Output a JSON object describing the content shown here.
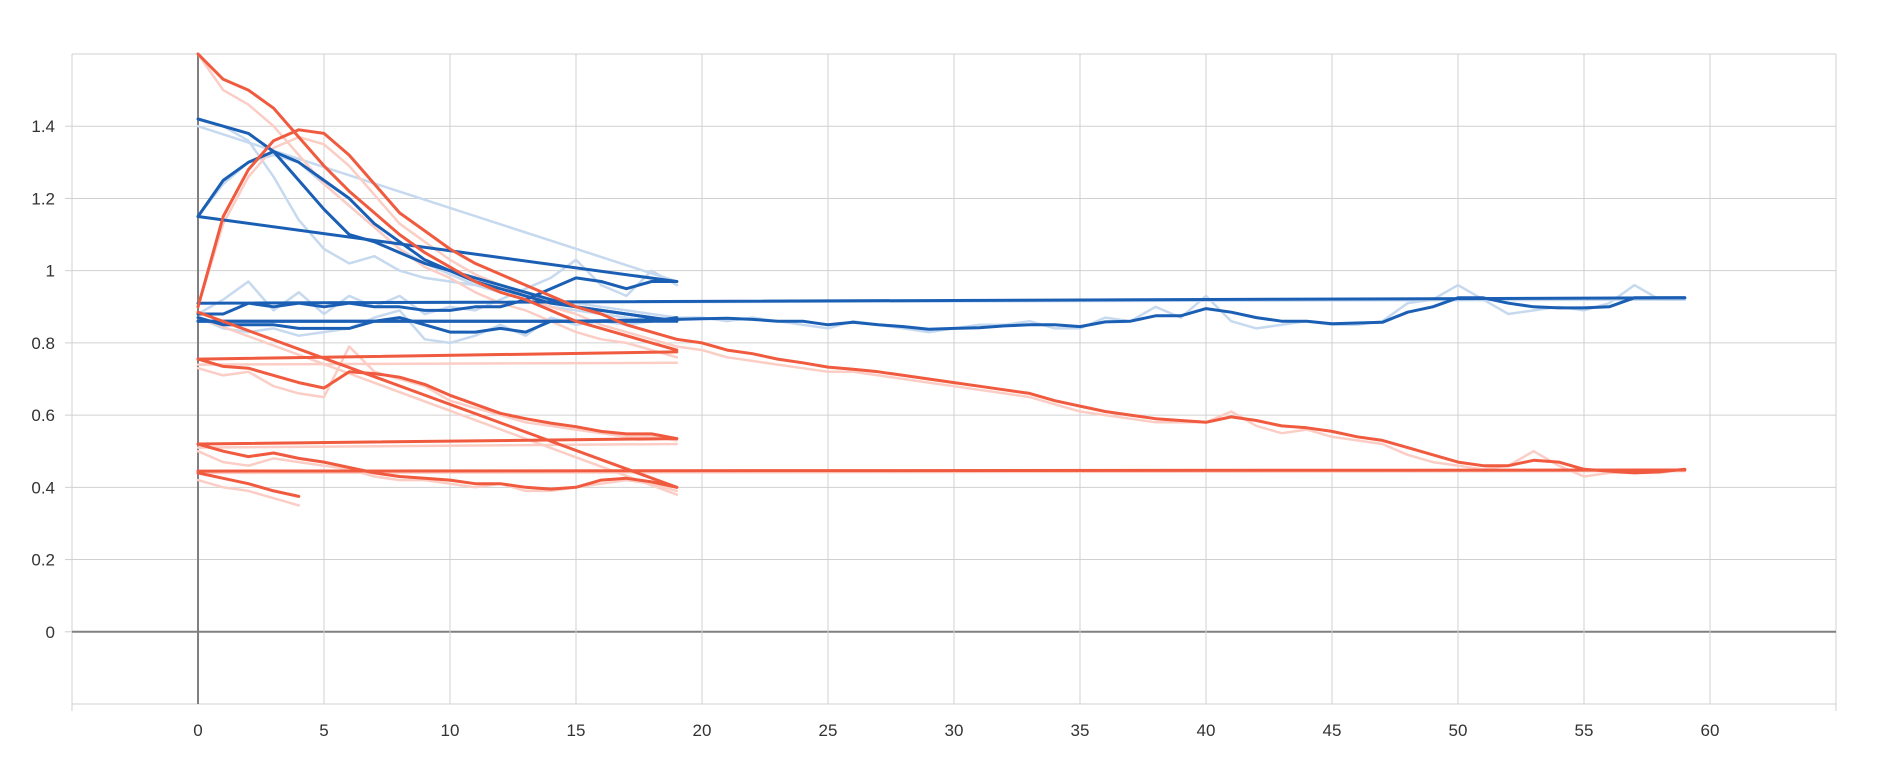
{
  "chart_data": {
    "type": "line",
    "title": "",
    "xlabel": "",
    "ylabel": "",
    "xlim": [
      -5,
      65
    ],
    "ylim": [
      -0.2,
      1.6
    ],
    "x_ticks": [
      0,
      5,
      10,
      15,
      20,
      25,
      30,
      35,
      40,
      45,
      50,
      55,
      60
    ],
    "y_ticks": [
      0,
      0.2,
      0.4,
      0.6,
      0.8,
      1,
      1.2,
      1.4
    ],
    "x_tick_labels": [
      "0",
      "5",
      "10",
      "15",
      "20",
      "25",
      "30",
      "35",
      "40",
      "45",
      "50",
      "55",
      "60"
    ],
    "y_tick_labels": [
      "0",
      "0.2",
      "0.4",
      "0.6",
      "0.8",
      "1",
      "1.2",
      "1.4"
    ],
    "grid": true,
    "legend": "none",
    "colors": {
      "blue": "#1a5fb4",
      "blue_light": "#c6d9ef",
      "red": "#f05a3f",
      "red_light": "#fbcdc4",
      "grid": "#d0d0d0",
      "axis": "#808080"
    },
    "series": [
      {
        "color": "blue",
        "x": [
          0,
          1,
          2,
          3,
          4,
          5,
          6,
          7,
          8,
          9,
          10,
          11,
          12,
          13,
          14,
          15,
          16,
          17,
          18,
          19
        ],
        "y": [
          1.42,
          1.4,
          1.38,
          1.33,
          1.25,
          1.17,
          1.1,
          1.08,
          1.05,
          1.02,
          1.0,
          0.98,
          0.96,
          0.94,
          0.92,
          0.9,
          0.89,
          0.88,
          0.87,
          0.86
        ],
        "ghost": [
          1.42,
          1.4,
          1.36,
          1.26,
          1.14,
          1.06,
          1.02,
          1.04,
          1.0,
          0.98,
          0.97,
          0.96,
          0.95,
          0.93,
          0.92,
          0.91,
          0.9,
          0.89,
          0.88,
          0.87
        ]
      },
      {
        "color": "blue",
        "x": [
          0,
          1,
          2,
          3,
          4,
          5,
          6,
          7,
          8,
          9,
          10,
          11,
          12,
          13,
          14,
          15,
          16,
          17,
          18,
          19
        ],
        "y": [
          1.15,
          1.25,
          1.3,
          1.33,
          1.3,
          1.25,
          1.2,
          1.13,
          1.08,
          1.03,
          1.0,
          0.97,
          0.95,
          0.93,
          0.91,
          0.9,
          0.89,
          0.88,
          0.87,
          0.86
        ],
        "ghost": [
          1.15,
          1.24,
          1.3,
          1.32,
          1.3,
          1.24,
          1.18,
          1.12,
          1.06,
          1.02,
          0.99,
          0.96,
          0.94,
          0.92,
          0.9,
          0.89,
          0.88,
          0.87,
          0.86,
          0.86
        ]
      },
      {
        "color": "blue",
        "x": [
          0,
          19
        ],
        "y": [
          1.15,
          0.97
        ],
        "ghost": [
          1.4,
          0.97
        ]
      },
      {
        "color": "blue",
        "x": [
          0,
          1,
          2,
          3,
          4,
          5,
          6,
          7,
          8,
          9,
          10,
          11,
          12,
          13,
          14,
          15,
          16,
          17,
          18,
          19
        ],
        "y": [
          0.88,
          0.88,
          0.91,
          0.9,
          0.91,
          0.9,
          0.91,
          0.9,
          0.9,
          0.89,
          0.89,
          0.9,
          0.9,
          0.92,
          0.95,
          0.98,
          0.97,
          0.95,
          0.97,
          0.97
        ],
        "ghost": [
          0.88,
          0.92,
          0.97,
          0.89,
          0.94,
          0.88,
          0.93,
          0.9,
          0.93,
          0.88,
          0.9,
          0.89,
          0.92,
          0.95,
          0.98,
          1.03,
          0.96,
          0.93,
          1.0,
          0.96
        ]
      },
      {
        "color": "blue",
        "x": [
          0,
          1,
          2,
          3,
          4,
          5,
          6,
          7,
          8,
          9,
          10,
          11,
          12,
          13,
          14,
          15,
          16,
          17,
          18,
          19
        ],
        "y": [
          0.87,
          0.85,
          0.85,
          0.85,
          0.84,
          0.84,
          0.84,
          0.86,
          0.87,
          0.85,
          0.83,
          0.83,
          0.84,
          0.83,
          0.86,
          0.86,
          0.86,
          0.86,
          0.86,
          0.87
        ],
        "ghost": [
          0.87,
          0.84,
          0.83,
          0.84,
          0.82,
          0.83,
          0.84,
          0.87,
          0.89,
          0.81,
          0.8,
          0.82,
          0.85,
          0.82,
          0.87,
          0.85,
          0.86,
          0.85,
          0.86,
          0.87
        ]
      },
      {
        "color": "blue",
        "x": [
          0,
          19
        ],
        "y": [
          0.86,
          0.86
        ],
        "ghost": [
          0.86,
          0.86
        ]
      },
      {
        "color": "blue",
        "x": [
          0,
          59
        ],
        "y": [
          0.91,
          0.925
        ],
        "ghost": [
          0.91,
          0.92
        ]
      },
      {
        "color": "blue",
        "x": [
          0,
          5,
          10,
          15,
          19,
          20,
          21,
          22,
          23,
          24,
          25,
          26,
          27,
          28,
          29,
          30,
          31,
          32,
          33,
          34,
          35,
          36,
          37,
          38,
          39,
          40,
          41,
          42,
          43,
          44,
          45,
          46,
          47,
          48,
          49,
          50,
          51,
          52,
          53,
          54,
          55,
          56,
          57,
          58,
          59
        ],
        "y": [
          0.86,
          0.86,
          0.86,
          0.86,
          0.865,
          0.867,
          0.868,
          0.865,
          0.86,
          0.86,
          0.85,
          0.857,
          0.85,
          0.845,
          0.838,
          0.84,
          0.842,
          0.847,
          0.85,
          0.85,
          0.845,
          0.858,
          0.86,
          0.875,
          0.875,
          0.895,
          0.885,
          0.87,
          0.86,
          0.86,
          0.853,
          0.855,
          0.857,
          0.885,
          0.9,
          0.925,
          0.925,
          0.91,
          0.9,
          0.897,
          0.897,
          0.9,
          0.925,
          0.925,
          0.925
        ],
        "ghost": [
          0.86,
          0.86,
          0.86,
          0.86,
          0.87,
          0.87,
          0.86,
          0.87,
          0.86,
          0.85,
          0.84,
          0.86,
          0.85,
          0.84,
          0.83,
          0.84,
          0.85,
          0.85,
          0.86,
          0.84,
          0.84,
          0.87,
          0.86,
          0.9,
          0.87,
          0.93,
          0.86,
          0.84,
          0.85,
          0.86,
          0.85,
          0.85,
          0.86,
          0.91,
          0.92,
          0.96,
          0.92,
          0.88,
          0.89,
          0.9,
          0.89,
          0.91,
          0.96,
          0.92,
          0.92
        ]
      },
      {
        "color": "red",
        "x": [
          0,
          1,
          2,
          3,
          4,
          5,
          6,
          7,
          8,
          9,
          10,
          11,
          12,
          13,
          14,
          15,
          16,
          17,
          18,
          19
        ],
        "y": [
          1.6,
          1.53,
          1.5,
          1.45,
          1.37,
          1.29,
          1.22,
          1.16,
          1.1,
          1.05,
          1.01,
          0.97,
          0.94,
          0.92,
          0.89,
          0.86,
          0.84,
          0.82,
          0.8,
          0.78
        ],
        "ghost": [
          1.6,
          1.5,
          1.46,
          1.4,
          1.32,
          1.24,
          1.18,
          1.12,
          1.06,
          1.01,
          0.98,
          0.94,
          0.91,
          0.89,
          0.86,
          0.83,
          0.81,
          0.8,
          0.78,
          0.76
        ]
      },
      {
        "color": "red",
        "x": [
          0,
          1,
          2,
          3,
          4,
          5,
          6,
          7,
          8,
          9,
          10,
          11,
          12,
          13,
          14,
          15,
          16,
          17,
          18,
          19,
          20,
          21,
          22,
          23,
          24,
          25,
          26,
          27,
          28,
          29,
          30,
          31,
          32,
          33,
          34,
          35,
          36,
          37,
          38,
          39,
          40,
          41,
          42,
          43,
          44,
          45,
          46,
          47,
          48,
          49,
          50,
          51,
          52,
          53,
          54,
          55,
          56,
          57,
          58,
          59
        ],
        "y": [
          0.9,
          1.15,
          1.28,
          1.36,
          1.39,
          1.38,
          1.32,
          1.24,
          1.16,
          1.11,
          1.06,
          1.02,
          0.99,
          0.96,
          0.93,
          0.9,
          0.88,
          0.85,
          0.83,
          0.81,
          0.8,
          0.78,
          0.77,
          0.755,
          0.745,
          0.733,
          0.727,
          0.72,
          0.71,
          0.7,
          0.69,
          0.68,
          0.67,
          0.66,
          0.64,
          0.625,
          0.61,
          0.6,
          0.59,
          0.585,
          0.58,
          0.595,
          0.585,
          0.57,
          0.565,
          0.555,
          0.54,
          0.53,
          0.51,
          0.49,
          0.47,
          0.46,
          0.46,
          0.475,
          0.47,
          0.45,
          0.445,
          0.44,
          0.443,
          0.45
        ],
        "ghost": [
          0.9,
          1.13,
          1.26,
          1.34,
          1.37,
          1.35,
          1.29,
          1.21,
          1.13,
          1.08,
          1.03,
          0.99,
          0.96,
          0.93,
          0.9,
          0.88,
          0.85,
          0.83,
          0.81,
          0.79,
          0.78,
          0.76,
          0.75,
          0.74,
          0.73,
          0.72,
          0.72,
          0.71,
          0.7,
          0.69,
          0.68,
          0.67,
          0.66,
          0.65,
          0.63,
          0.61,
          0.6,
          0.59,
          0.58,
          0.58,
          0.58,
          0.61,
          0.57,
          0.55,
          0.56,
          0.54,
          0.53,
          0.52,
          0.49,
          0.47,
          0.46,
          0.45,
          0.46,
          0.5,
          0.46,
          0.43,
          0.44,
          0.44,
          0.44,
          0.45
        ]
      },
      {
        "color": "red",
        "x": [
          0,
          19
        ],
        "y": [
          0.885,
          0.4
        ],
        "ghost": [
          0.87,
          0.38
        ]
      },
      {
        "color": "red",
        "x": [
          0,
          19
        ],
        "y": [
          0.755,
          0.775
        ],
        "ghost": [
          0.74,
          0.745
        ]
      },
      {
        "color": "red",
        "x": [
          0,
          1,
          2,
          3,
          4,
          5,
          6,
          7,
          8,
          9,
          10,
          11,
          12,
          13,
          14,
          15,
          16,
          17,
          18,
          19
        ],
        "y": [
          0.755,
          0.735,
          0.73,
          0.71,
          0.69,
          0.675,
          0.72,
          0.715,
          0.705,
          0.685,
          0.655,
          0.63,
          0.605,
          0.59,
          0.578,
          0.568,
          0.555,
          0.548,
          0.548,
          0.535
        ],
        "ghost": [
          0.73,
          0.71,
          0.72,
          0.68,
          0.66,
          0.65,
          0.79,
          0.72,
          0.7,
          0.68,
          0.64,
          0.62,
          0.6,
          0.58,
          0.57,
          0.56,
          0.55,
          0.54,
          0.54,
          0.53
        ]
      },
      {
        "color": "red",
        "x": [
          0,
          19
        ],
        "y": [
          0.52,
          0.535
        ],
        "ghost": [
          0.51,
          0.52
        ]
      },
      {
        "color": "red",
        "x": [
          0,
          1,
          2,
          3,
          4,
          5,
          6,
          7,
          8,
          9,
          10,
          11,
          12,
          13,
          14,
          15,
          16,
          17,
          18,
          19
        ],
        "y": [
          0.52,
          0.5,
          0.485,
          0.495,
          0.48,
          0.47,
          0.455,
          0.44,
          0.43,
          0.425,
          0.42,
          0.41,
          0.41,
          0.4,
          0.395,
          0.4,
          0.42,
          0.425,
          0.415,
          0.4
        ],
        "ghost": [
          0.5,
          0.47,
          0.46,
          0.48,
          0.47,
          0.46,
          0.45,
          0.43,
          0.42,
          0.42,
          0.41,
          0.4,
          0.41,
          0.39,
          0.39,
          0.4,
          0.41,
          0.42,
          0.41,
          0.39
        ]
      },
      {
        "color": "red",
        "x": [
          0,
          59
        ],
        "y": [
          0.445,
          0.448
        ],
        "ghost": [
          0.44,
          0.445
        ]
      },
      {
        "color": "red",
        "x": [
          0,
          1,
          2,
          3,
          4
        ],
        "y": [
          0.44,
          0.425,
          0.41,
          0.39,
          0.375
        ],
        "ghost": [
          0.42,
          0.4,
          0.39,
          0.37,
          0.35
        ]
      }
    ]
  }
}
